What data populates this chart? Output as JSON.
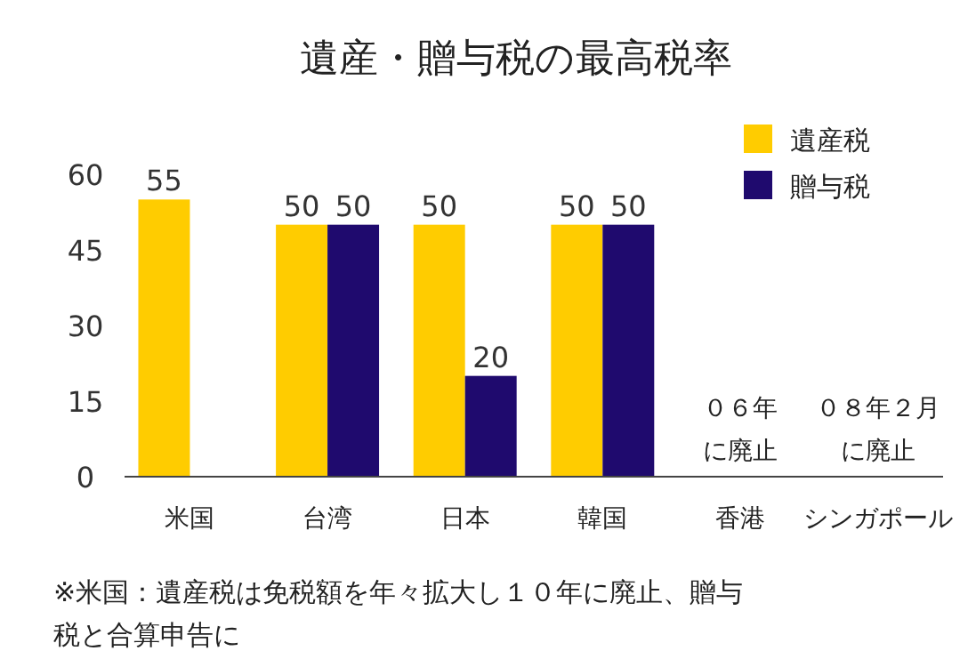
{
  "chart_data": {
    "type": "bar",
    "title": "遺産・贈与税の最高税率",
    "categories": [
      "米国",
      "台湾",
      "日本",
      "韓国",
      "香港",
      "シンガポール"
    ],
    "series": [
      {
        "name": "遺産税",
        "color": "#ffcc00",
        "values": [
          55,
          50,
          50,
          50,
          null,
          null
        ]
      },
      {
        "name": "贈与税",
        "color": "#1f0a6e",
        "values": [
          null,
          50,
          20,
          50,
          null,
          null
        ]
      }
    ],
    "ylim": [
      0,
      60
    ],
    "yticks": [
      0,
      15,
      30,
      45,
      60
    ],
    "grid": false,
    "legend": "top right",
    "data_labels": true,
    "annotations": [
      "０６年に廃止",
      "０８年２月に廃止",
      "※米国：遺産税は免税額を年々拡大し１０年に廃止、贈与税と合算申告に"
    ]
  }
}
